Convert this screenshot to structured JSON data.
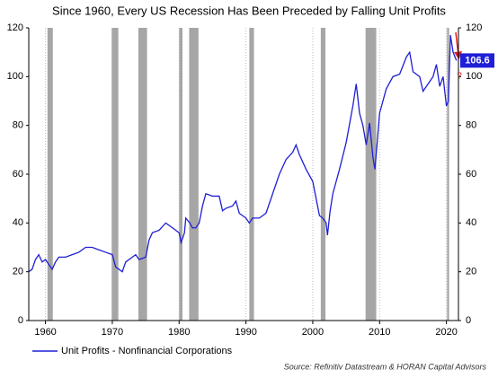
{
  "chart_data": {
    "type": "line",
    "title": "Since 1960, Every US Recession Has Been Preceded by Falling Unit Profits",
    "source": "Source: Refinitiv Datastream & HORAN Capital Advisors",
    "annotation": "?",
    "x": [
      1957.5,
      1958,
      1958.5,
      1959,
      1959.5,
      1960,
      1960.5,
      1961,
      1961.5,
      1962,
      1963,
      1964,
      1965,
      1966,
      1967,
      1968,
      1969,
      1970,
      1970.5,
      1971,
      1971.5,
      1972,
      1973,
      1973.5,
      1974,
      1975,
      1975.5,
      1976,
      1977,
      1978,
      1979,
      1980,
      1980.3,
      1980.8,
      1981,
      1981.6,
      1982,
      1982.5,
      1983,
      1983.5,
      1984,
      1985,
      1986,
      1986.5,
      1987,
      1988,
      1988.5,
      1989,
      1990,
      1990.5,
      1991,
      1992,
      1993,
      1994,
      1995,
      1996,
      1997,
      1997.5,
      1998,
      1999,
      2000,
      2000.5,
      2001,
      2001.5,
      2002,
      2002.2,
      2002.6,
      2003,
      2004,
      2005,
      2006,
      2006.5,
      2007,
      2007.5,
      2008,
      2008.5,
      2009,
      2009.3,
      2009.7,
      2010,
      2011,
      2012,
      2013,
      2014,
      2014.5,
      2015,
      2016,
      2016.5,
      2017,
      2018,
      2018.5,
      2019,
      2019.5,
      2020,
      2020.3,
      2020.6,
      2021,
      2021.5
    ],
    "series": [
      {
        "name": "Unit Profits - Nonfinancial Corporations",
        "color": "#1f1fd6",
        "values": [
          20,
          21,
          25,
          27,
          24,
          25,
          23,
          21,
          24,
          26,
          26,
          27,
          28,
          30,
          30,
          29,
          28,
          27,
          22,
          21,
          20,
          24,
          26,
          27,
          25,
          26,
          33,
          36,
          37,
          40,
          38,
          36,
          32,
          36,
          42,
          40,
          38,
          38,
          40,
          47,
          52,
          51,
          51,
          45,
          46,
          47,
          49,
          44,
          42,
          40,
          42,
          42,
          44,
          52,
          60,
          66,
          69,
          72,
          68,
          62,
          57,
          50,
          43,
          42,
          40,
          35,
          45,
          52,
          62,
          73,
          88,
          97,
          85,
          80,
          72,
          81,
          67,
          62,
          75,
          85,
          95,
          100,
          101,
          108,
          110,
          102,
          100,
          94,
          96,
          100,
          105,
          96,
          100,
          88,
          90,
          117,
          110,
          106.6
        ]
      }
    ],
    "recessions": [
      [
        1960.3,
        1961.1
      ],
      [
        1969.9,
        1970.9
      ],
      [
        1973.9,
        1975.2
      ],
      [
        1980.0,
        1980.5
      ],
      [
        1981.5,
        1982.9
      ],
      [
        1990.5,
        1991.2
      ],
      [
        2001.2,
        2001.9
      ],
      [
        2007.9,
        2009.5
      ],
      [
        2020.1,
        2020.4
      ]
    ],
    "recession_color": "#a6a6a6",
    "xlim": [
      1957.5,
      2021.8
    ],
    "xticks": [
      1960,
      1970,
      1980,
      1990,
      2000,
      2010,
      2020
    ],
    "ylim": [
      0,
      120
    ],
    "yticks": [
      0,
      20,
      40,
      60,
      80,
      100,
      120
    ],
    "y2lim": [
      0,
      120
    ],
    "y2ticks": [
      0,
      20,
      40,
      60,
      80,
      100,
      120
    ],
    "grid": true
  }
}
